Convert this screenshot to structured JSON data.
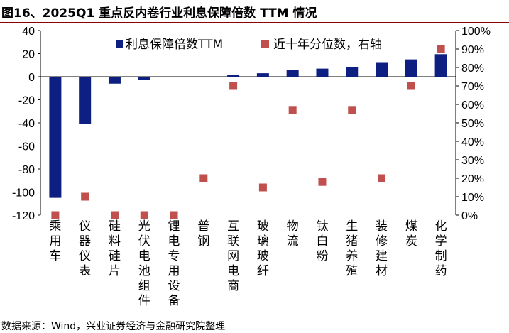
{
  "figure": {
    "title": "图16、2025Q1 重点反内卷行业利息保障倍数 TTM 情况",
    "source": "数据来源：Wind，兴业证券经济与金融研究院整理"
  },
  "chart_data": {
    "type": "bar",
    "categories": [
      "乘用车",
      "仪器仪表",
      "硅料硅片",
      "光伏电池组件",
      "锂电专用设备",
      "普钢",
      "互联网电商",
      "玻璃玻纤",
      "物流",
      "钛白粉",
      "生猪养殖",
      "装修建材",
      "煤炭",
      "化学制药"
    ],
    "series": [
      {
        "name": "利息保障倍数TTM",
        "type": "bar",
        "axis": "left",
        "color": "#0d1f80",
        "values": [
          -105,
          -41,
          -6,
          -3,
          0,
          0,
          1.5,
          3,
          6,
          7,
          8,
          12,
          15,
          19.5
        ]
      },
      {
        "name": "近十年分位数，右轴",
        "type": "scatter",
        "axis": "right",
        "color": "#c0504d",
        "values": [
          0,
          10,
          0,
          0,
          0,
          20,
          70,
          15,
          57,
          18,
          57,
          20,
          70,
          90
        ]
      }
    ],
    "y_left": {
      "range": [
        -120,
        40
      ],
      "ticks": [
        "40",
        "20",
        "0",
        "-20",
        "-40",
        "-60",
        "-80",
        "-100",
        "-120"
      ],
      "tick_values": [
        40,
        20,
        0,
        -20,
        -40,
        -60,
        -80,
        -100,
        -120
      ]
    },
    "y_right": {
      "range": [
        0,
        100
      ],
      "ticks": [
        "100%",
        "90%",
        "80%",
        "70%",
        "60%",
        "50%",
        "40%",
        "30%",
        "20%",
        "10%",
        "0%"
      ],
      "tick_values": [
        100,
        90,
        80,
        70,
        60,
        50,
        40,
        30,
        20,
        10,
        0
      ]
    },
    "legend_position": "top",
    "grid": false
  }
}
